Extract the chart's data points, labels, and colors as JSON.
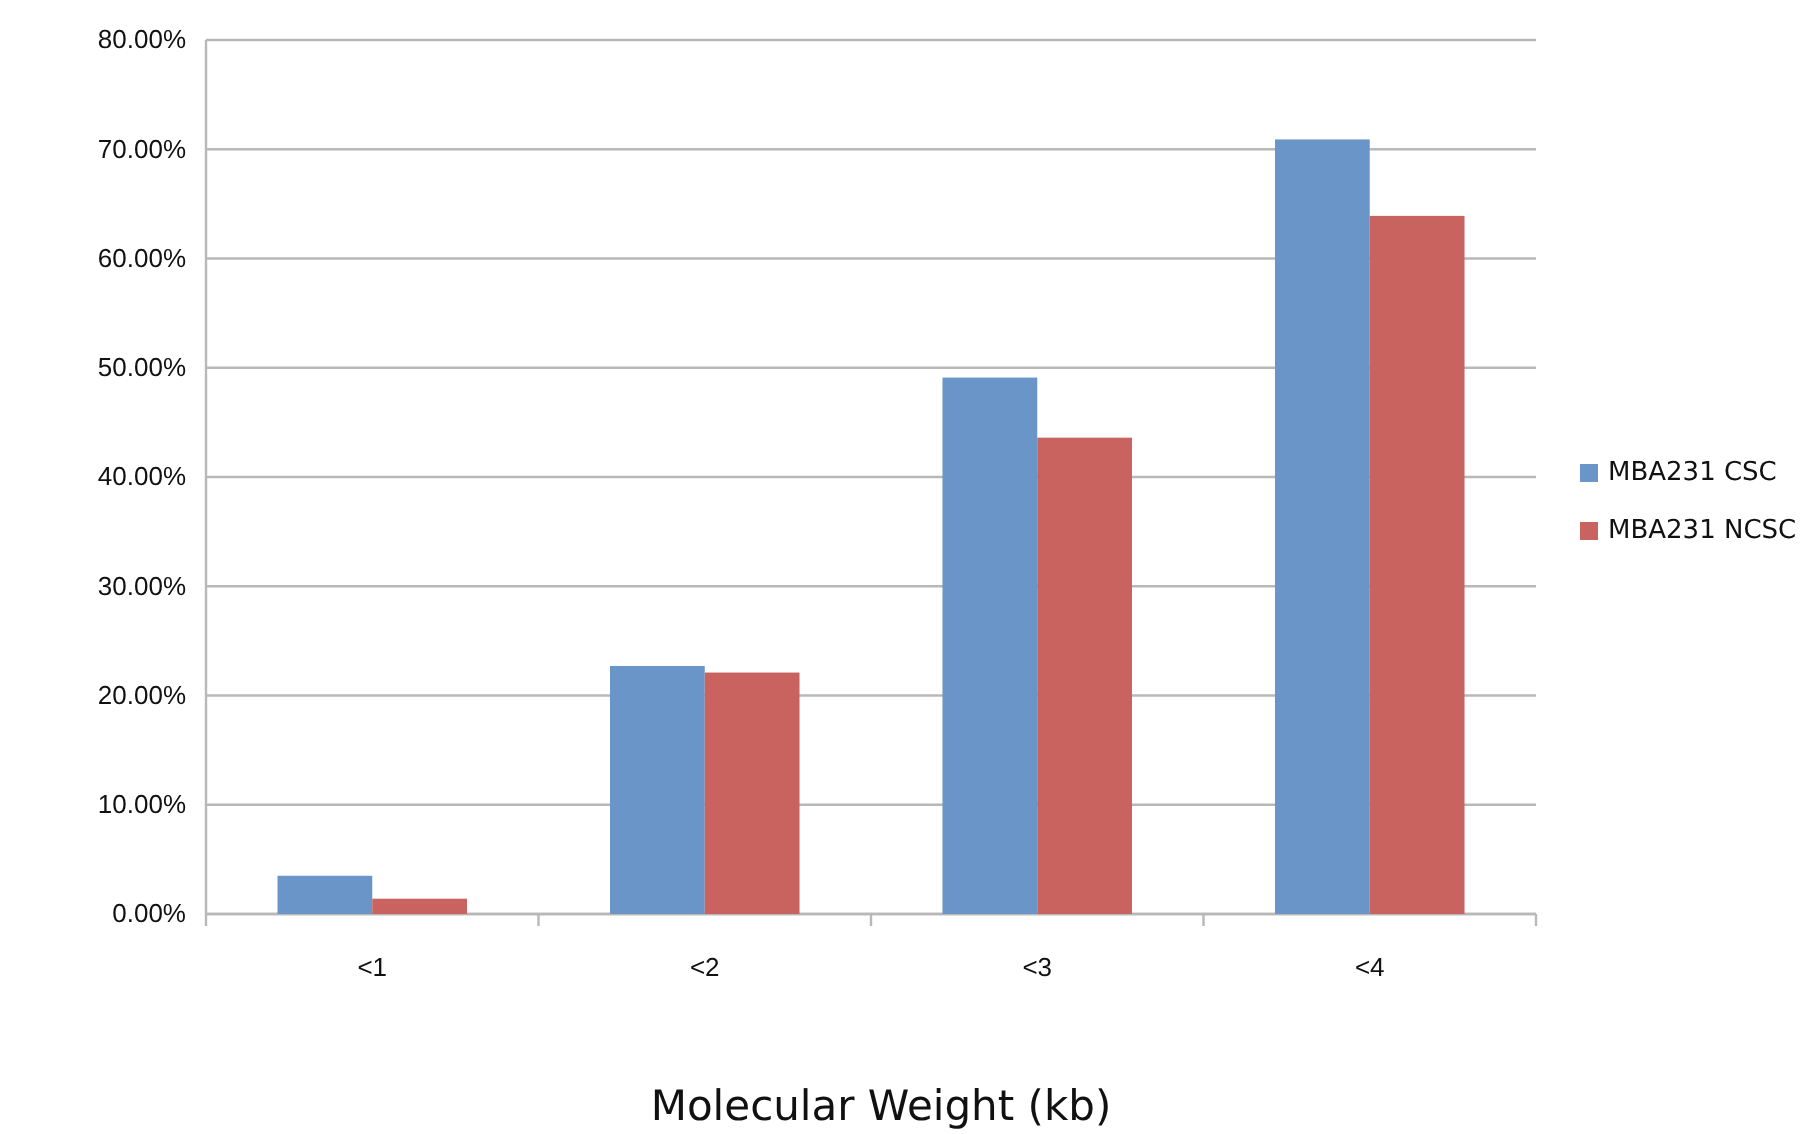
{
  "chart_data": {
    "type": "bar",
    "xlabel": "Molecular Weight (kb)",
    "categories": [
      "<1",
      "<2",
      "<3",
      "<4"
    ],
    "series": [
      {
        "name": "MBA231 CSC",
        "color": "#6a95c9",
        "values": [
          3.5,
          22.7,
          49.1,
          70.9
        ]
      },
      {
        "name": "MBA231 NCSC",
        "color": "#c96360",
        "values": [
          1.4,
          22.1,
          43.6,
          63.9
        ]
      }
    ],
    "ylim": [
      0,
      80
    ],
    "yticks": [
      {
        "value": 0,
        "label": "0.00%"
      },
      {
        "value": 10,
        "label": "10.00%"
      },
      {
        "value": 20,
        "label": "20.00%"
      },
      {
        "value": 30,
        "label": "30.00%"
      },
      {
        "value": 40,
        "label": "40.00%"
      },
      {
        "value": 50,
        "label": "50.00%"
      },
      {
        "value": 60,
        "label": "60.00%"
      },
      {
        "value": 70,
        "label": "70.00%"
      },
      {
        "value": 80,
        "label": "80.00%"
      }
    ],
    "grid": "y",
    "legend": "right"
  }
}
